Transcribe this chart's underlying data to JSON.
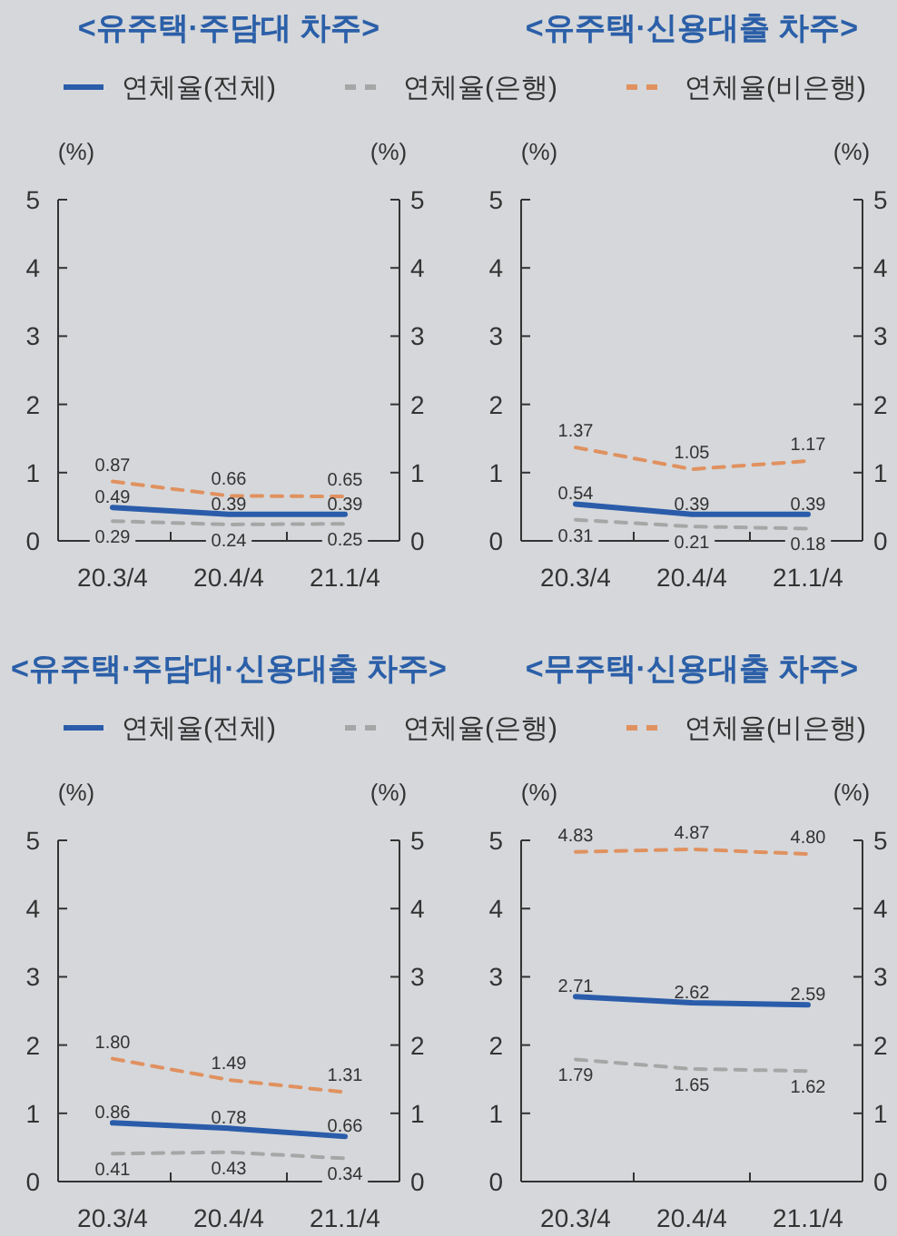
{
  "chart_data": [
    {
      "type": "line",
      "title": "<유주택·주담대 차주>",
      "ylabel": "(%)",
      "y2label": "(%)",
      "categories": [
        "20.3/4",
        "20.4/4",
        "21.1/4"
      ],
      "ylim": [
        0,
        5
      ],
      "yticks": [
        0,
        1,
        2,
        3,
        4,
        5
      ],
      "y2lim": [
        0,
        5
      ],
      "y2ticks": [
        0,
        1,
        2,
        3,
        4,
        5
      ],
      "legend": "top",
      "grid": false,
      "series": [
        {
          "name": "연체율(전체)",
          "color": "#2a5caa",
          "line_style": "solid",
          "values": [
            0.49,
            0.39,
            0.39
          ],
          "value_labels": [
            "0.49",
            "0.39",
            "0.39"
          ]
        },
        {
          "name": "연체율(은행)",
          "color": "#a6a6a6",
          "line_style": "dashed",
          "values": [
            0.29,
            0.24,
            0.25
          ],
          "value_labels": [
            "0.29",
            "0.24",
            "0.25"
          ]
        },
        {
          "name": "연체율(비은행)",
          "color": "#e0915f",
          "line_style": "dashed",
          "values": [
            0.87,
            0.66,
            0.65
          ],
          "value_labels": [
            "0.87",
            "0.66",
            "0.65"
          ]
        }
      ]
    },
    {
      "type": "line",
      "title": "<유주택·신용대출 차주>",
      "ylabel": "(%)",
      "y2label": "(%)",
      "categories": [
        "20.3/4",
        "20.4/4",
        "21.1/4"
      ],
      "ylim": [
        0,
        5
      ],
      "yticks": [
        0,
        1,
        2,
        3,
        4,
        5
      ],
      "y2lim": [
        0,
        5
      ],
      "y2ticks": [
        0,
        1,
        2,
        3,
        4,
        5
      ],
      "grid": false,
      "series": [
        {
          "color": "#2a5caa",
          "line_style": "solid",
          "values": [
            0.54,
            0.39,
            0.39
          ],
          "value_labels": [
            "0.54",
            "0.39",
            "0.39"
          ]
        },
        {
          "color": "#a6a6a6",
          "line_style": "dashed",
          "values": [
            0.31,
            0.21,
            0.18
          ],
          "value_labels": [
            "0.31",
            "0.21",
            "0.18"
          ]
        },
        {
          "color": "#e0915f",
          "line_style": "dashed",
          "values": [
            1.37,
            1.05,
            1.17
          ],
          "value_labels": [
            "1.37",
            "1.05",
            "1.17"
          ]
        }
      ]
    },
    {
      "type": "line",
      "title": "<유주택·주담대·신용대출 차주>",
      "ylabel": "(%)",
      "y2label": "(%)",
      "categories": [
        "20.3/4",
        "20.4/4",
        "21.1/4"
      ],
      "ylim": [
        0,
        5
      ],
      "yticks": [
        0,
        1,
        2,
        3,
        4,
        5
      ],
      "y2lim": [
        0,
        5
      ],
      "y2ticks": [
        0,
        1,
        2,
        3,
        4,
        5
      ],
      "legend": "top",
      "grid": false,
      "series": [
        {
          "name": "연체율(전체)",
          "color": "#2a5caa",
          "line_style": "solid",
          "values": [
            0.86,
            0.78,
            0.66
          ],
          "value_labels": [
            "0.86",
            "0.78",
            "0.66"
          ]
        },
        {
          "name": "연체율(은행)",
          "color": "#a6a6a6",
          "line_style": "dashed",
          "values": [
            0.41,
            0.43,
            0.34
          ],
          "value_labels": [
            "0.41",
            "0.43",
            "0.34"
          ]
        },
        {
          "name": "연체율(비은행)",
          "color": "#e0915f",
          "line_style": "dashed",
          "values": [
            1.8,
            1.49,
            1.31
          ],
          "value_labels": [
            "1.80",
            "1.49",
            "1.31"
          ]
        }
      ]
    },
    {
      "type": "line",
      "title": "<무주택·신용대출 차주>",
      "ylabel": "(%)",
      "y2label": "(%)",
      "categories": [
        "20.3/4",
        "20.4/4",
        "21.1/4"
      ],
      "ylim": [
        0,
        5
      ],
      "yticks": [
        0,
        1,
        2,
        3,
        4,
        5
      ],
      "y2lim": [
        0,
        5
      ],
      "y2ticks": [
        0,
        1,
        2,
        3,
        4,
        5
      ],
      "grid": false,
      "series": [
        {
          "color": "#2a5caa",
          "line_style": "solid",
          "values": [
            2.71,
            2.62,
            2.59
          ],
          "value_labels": [
            "2.71",
            "2.62",
            "2.59"
          ]
        },
        {
          "color": "#a6a6a6",
          "line_style": "dashed",
          "values": [
            1.79,
            1.65,
            1.62
          ],
          "value_labels": [
            "1.79",
            "1.65",
            "1.62"
          ]
        },
        {
          "color": "#e0915f",
          "line_style": "dashed",
          "values": [
            4.83,
            4.87,
            4.8
          ],
          "value_labels": [
            "4.83",
            "4.87",
            "4.80"
          ]
        }
      ]
    }
  ]
}
